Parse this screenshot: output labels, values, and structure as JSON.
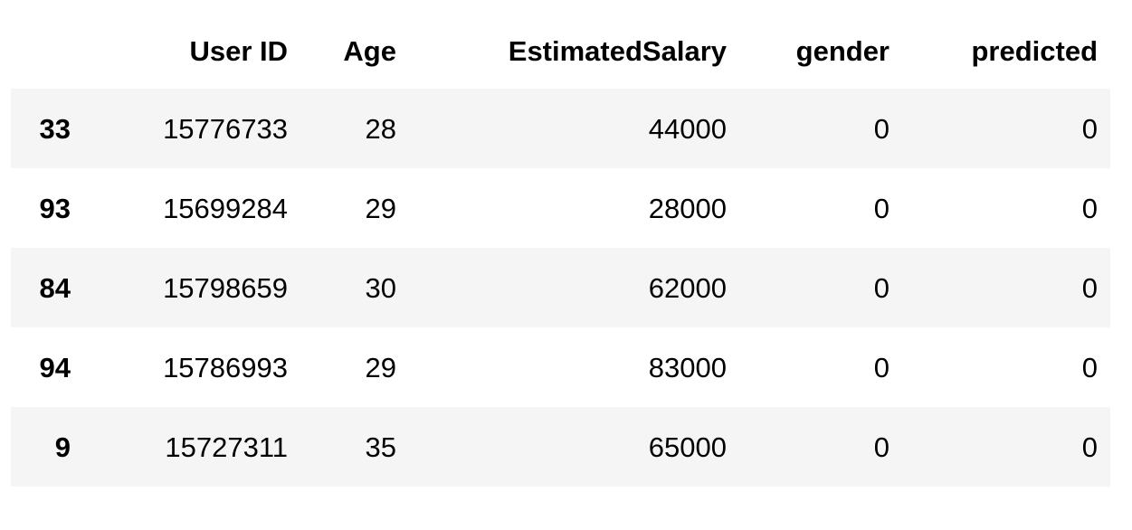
{
  "table": {
    "index_header": "",
    "columns": [
      "User ID",
      "Age",
      "EstimatedSalary",
      "gender",
      "predicted"
    ],
    "rows": [
      {
        "index": "33",
        "cells": [
          "15776733",
          "28",
          "44000",
          "0",
          "0"
        ]
      },
      {
        "index": "93",
        "cells": [
          "15699284",
          "29",
          "28000",
          "0",
          "0"
        ]
      },
      {
        "index": "84",
        "cells": [
          "15798659",
          "30",
          "62000",
          "0",
          "0"
        ]
      },
      {
        "index": "94",
        "cells": [
          "15786993",
          "29",
          "83000",
          "0",
          "0"
        ]
      },
      {
        "index": "9",
        "cells": [
          "15727311",
          "35",
          "65000",
          "0",
          "0"
        ]
      }
    ],
    "colors": {
      "stripe": "#f5f5f5",
      "header_border": "#000000",
      "text": "#000000",
      "background": "#ffffff"
    }
  },
  "chart_data": {
    "type": "table",
    "columns": [
      "index",
      "User ID",
      "Age",
      "EstimatedSalary",
      "gender",
      "predicted"
    ],
    "rows": [
      [
        33,
        15776733,
        28,
        44000,
        0,
        0
      ],
      [
        93,
        15699284,
        29,
        28000,
        0,
        0
      ],
      [
        84,
        15798659,
        30,
        62000,
        0,
        0
      ],
      [
        94,
        15786993,
        29,
        83000,
        0,
        0
      ],
      [
        9,
        15727311,
        35,
        65000,
        0,
        0
      ]
    ]
  }
}
